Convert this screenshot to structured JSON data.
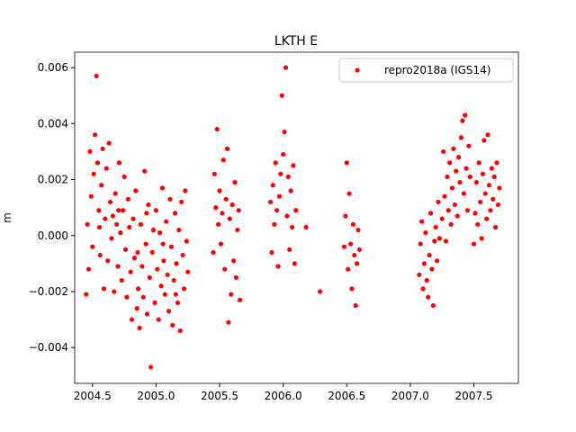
{
  "chart_data": {
    "type": "scatter",
    "title": "LKTH E",
    "ylabel": "m",
    "x": [
      2004.45,
      2004.46,
      2004.47,
      2004.48,
      2004.49,
      2004.5,
      2004.51,
      2004.52,
      2004.53,
      2004.54,
      2004.55,
      2004.56,
      2004.57,
      2004.58,
      2004.59,
      2004.6,
      2004.61,
      2004.62,
      2004.63,
      2004.64,
      2004.65,
      2004.66,
      2004.67,
      2004.68,
      2004.69,
      2004.7,
      2004.71,
      2004.72,
      2004.73,
      2004.74,
      2004.75,
      2004.76,
      2004.77,
      2004.78,
      2004.79,
      2004.8,
      2004.81,
      2004.82,
      2004.83,
      2004.84,
      2004.85,
      2004.86,
      2004.87,
      2004.88,
      2004.89,
      2004.9,
      2004.91,
      2004.92,
      2004.93,
      2004.94,
      2004.95,
      2004.96,
      2004.97,
      2004.98,
      2004.99,
      2005.0,
      2005.01,
      2005.02,
      2005.03,
      2005.04,
      2005.05,
      2005.06,
      2005.07,
      2005.08,
      2005.09,
      2005.1,
      2005.11,
      2005.12,
      2005.13,
      2005.14,
      2005.15,
      2005.16,
      2005.17,
      2005.18,
      2005.19,
      2005.2,
      2005.21,
      2005.22,
      2005.23,
      2005.24,
      2005.25,
      2004.555,
      2004.705,
      2004.855,
      2004.925,
      2005.055,
      2005.155,
      2005.45,
      2005.46,
      2005.47,
      2005.48,
      2005.49,
      2005.5,
      2005.51,
      2005.52,
      2005.53,
      2005.54,
      2005.55,
      2005.56,
      2005.57,
      2005.58,
      2005.59,
      2005.6,
      2005.61,
      2005.62,
      2005.63,
      2005.64,
      2005.65,
      2005.66,
      2005.9,
      2005.91,
      2005.92,
      2005.93,
      2005.94,
      2005.95,
      2005.96,
      2005.97,
      2005.98,
      2005.99,
      2006.0,
      2006.01,
      2006.02,
      2006.03,
      2006.04,
      2006.05,
      2006.06,
      2006.07,
      2006.08,
      2006.09,
      2006.1,
      2006.18,
      2006.29,
      2006.48,
      2006.49,
      2006.5,
      2006.51,
      2006.52,
      2006.53,
      2006.54,
      2006.55,
      2006.56,
      2006.57,
      2006.58,
      2006.59,
      2006.6,
      2007.07,
      2007.08,
      2007.09,
      2007.1,
      2007.11,
      2007.12,
      2007.13,
      2007.14,
      2007.15,
      2007.16,
      2007.17,
      2007.18,
      2007.19,
      2007.2,
      2007.21,
      2007.22,
      2007.23,
      2007.25,
      2007.26,
      2007.27,
      2007.28,
      2007.29,
      2007.3,
      2007.31,
      2007.32,
      2007.33,
      2007.34,
      2007.35,
      2007.36,
      2007.37,
      2007.38,
      2007.39,
      2007.4,
      2007.41,
      2007.42,
      2007.43,
      2007.44,
      2007.45,
      2007.46,
      2007.47,
      2007.5,
      2007.51,
      2007.52,
      2007.53,
      2007.54,
      2007.55,
      2007.56,
      2007.57,
      2007.58,
      2007.59,
      2007.6,
      2007.61,
      2007.62,
      2007.63,
      2007.64,
      2007.65,
      2007.66,
      2007.67,
      2007.68,
      2007.69,
      2007.7
    ],
    "series": [
      {
        "name": "repro2018a (IGS14)",
        "color": "#ff0000",
        "values": [
          -0.0021,
          0.0004,
          -0.0012,
          0.003,
          0.0014,
          -0.0004,
          0.0022,
          0.0036,
          0.0057,
          0.0026,
          0.0009,
          -0.0007,
          0.0018,
          0.0031,
          -0.0019,
          0.0006,
          0.0024,
          -0.0009,
          0.0033,
          0.0012,
          -0.0001,
          0.0007,
          -0.002,
          0.0015,
          0.0004,
          -0.0011,
          0.0026,
          0.0001,
          -0.0016,
          0.0009,
          0.0021,
          -0.0005,
          -0.0022,
          0.0013,
          0.0003,
          -0.0013,
          -0.003,
          0.0006,
          -0.0008,
          0.0016,
          -0.0026,
          -0.0019,
          -0.0033,
          0.0004,
          -0.0011,
          -0.0022,
          0.0023,
          -0.0003,
          -0.0028,
          0.0011,
          -0.0015,
          -0.0047,
          -0.0006,
          0.0002,
          -0.0024,
          0.0009,
          -0.0012,
          -0.003,
          0.0001,
          -0.0018,
          0.0017,
          -0.0009,
          -0.0021,
          0.0005,
          -0.0014,
          -0.0027,
          0.0013,
          -0.0004,
          -0.0032,
          -0.0016,
          0.0008,
          -0.001,
          -0.0024,
          0.0002,
          -0.0034,
          0.0012,
          -0.0007,
          -0.0019,
          0.0016,
          -0.0002,
          -0.0013,
          0.0003,
          0.0009,
          -0.0006,
          0.0008,
          -0.0003,
          -0.0021,
          -0.0006,
          0.0022,
          0.001,
          0.0038,
          0.0004,
          0.0016,
          -0.0003,
          0.0008,
          0.0027,
          -0.0012,
          0.0013,
          0.0031,
          -0.0031,
          0.0006,
          -0.0021,
          0.0011,
          -0.0009,
          0.0019,
          -0.0015,
          0.0002,
          0.0009,
          -0.0023,
          0.0012,
          -0.0006,
          0.0018,
          0.0004,
          0.0026,
          0.0009,
          -0.0011,
          0.0014,
          0.0022,
          0.005,
          0.0029,
          0.0037,
          0.006,
          0.0007,
          0.0021,
          -0.0005,
          0.0016,
          0.0003,
          0.0025,
          -0.001,
          0.0009,
          0.0003,
          -0.002,
          -0.0004,
          0.0007,
          0.0026,
          -0.0012,
          0.0015,
          -0.0003,
          -0.0019,
          0.0004,
          -0.0007,
          -0.0025,
          -0.001,
          0.0002,
          -0.0005,
          -0.0014,
          -0.0003,
          0.0005,
          -0.0019,
          -0.001,
          0.0001,
          -0.0016,
          -0.0022,
          -0.0007,
          0.0008,
          -0.0012,
          -0.0025,
          -0.0002,
          0.0003,
          -0.0009,
          0.0012,
          -0.0001,
          0.0006,
          0.003,
          0.0014,
          -0.0002,
          0.0021,
          0.0009,
          0.0026,
          0.0004,
          0.0017,
          0.0031,
          0.0011,
          0.0023,
          0.0007,
          0.0028,
          0.0019,
          0.0035,
          0.0041,
          0.0015,
          0.0043,
          0.0024,
          0.0009,
          0.0032,
          0.0021,
          -0.0003,
          0.0008,
          0.0019,
          0.0004,
          0.0026,
          0.0012,
          -0.0001,
          0.0022,
          0.0034,
          0.0015,
          0.0006,
          0.0036,
          0.0018,
          0.0009,
          0.0024,
          0.0013,
          0.0021,
          0.0003,
          0.0026,
          0.0011,
          0.0017
        ]
      }
    ],
    "xlim": [
      2004.36,
      2007.85
    ],
    "ylim": [
      -0.00528,
      0.00655
    ],
    "xticks": [
      2004.5,
      {
        "value": 2005,
        "label": "2005.0"
      },
      2005.5,
      {
        "value": 2006,
        "label": "2006.0"
      },
      2006.5,
      {
        "value": 2007,
        "label": "2007.0"
      },
      2007.5
    ],
    "yticks": [
      {
        "value": -0.004,
        "label": "−0.004"
      },
      {
        "value": -0.002,
        "label": "−0.002"
      },
      {
        "value": 0,
        "label": "0.000"
      },
      {
        "value": 0.002,
        "label": "0.002"
      },
      {
        "value": 0.004,
        "label": "0.004"
      },
      {
        "value": 0.006,
        "label": "0.006"
      }
    ],
    "legend": "upper right"
  }
}
